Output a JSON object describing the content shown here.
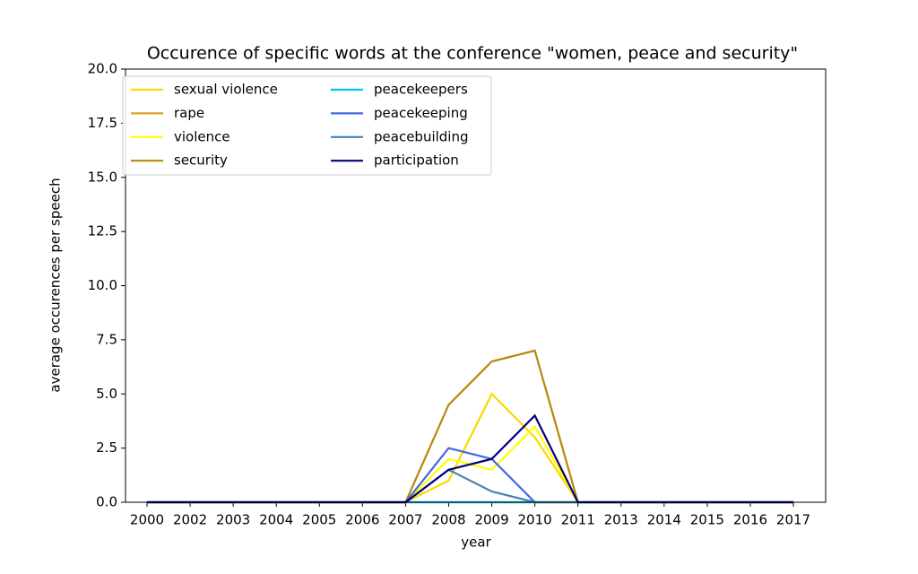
{
  "chart_data": {
    "type": "line",
    "title": "Occurence of specific words at the conference \"women, peace and security\"",
    "xlabel": "year",
    "ylabel": "average occurences per speech",
    "categories": [
      "2000",
      "2002",
      "2003",
      "2004",
      "2005",
      "2006",
      "2007",
      "2008",
      "2009",
      "2010",
      "2011",
      "2013",
      "2014",
      "2015",
      "2016",
      "2017"
    ],
    "ylim": [
      0,
      20
    ],
    "yticks": [
      {
        "value": 0,
        "label": "0.0"
      },
      2.5,
      {
        "value": 5,
        "label": "5.0"
      },
      7.5,
      {
        "value": 10,
        "label": "10.0"
      },
      12.5,
      {
        "value": 15,
        "label": "15.0"
      },
      17.5,
      {
        "value": 20,
        "label": "20.0"
      }
    ],
    "legend": "upper left",
    "series": [
      {
        "name": "sexual violence",
        "color": "#ffd700",
        "values": [
          0,
          0,
          0,
          0,
          0,
          0,
          0,
          1.0,
          5.0,
          3.0,
          0,
          0,
          0,
          0,
          0,
          0
        ]
      },
      {
        "name": "rape",
        "color": "#daa520",
        "values": [
          0,
          0,
          0,
          0,
          0,
          0,
          0,
          0,
          0,
          0,
          0,
          0,
          0,
          0,
          0,
          0
        ]
      },
      {
        "name": "violence",
        "color": "#ffff00",
        "values": [
          0,
          0,
          0,
          0,
          0,
          0,
          0,
          2.0,
          1.5,
          3.5,
          0,
          0,
          0,
          0,
          0,
          0
        ]
      },
      {
        "name": "security",
        "color": "#b8860b",
        "values": [
          0,
          0,
          0,
          0,
          0,
          0,
          0,
          4.5,
          6.5,
          7.0,
          0,
          0,
          0,
          0,
          0,
          0
        ]
      },
      {
        "name": "peacekeepers",
        "color": "#00bfff",
        "values": [
          0,
          0,
          0,
          0,
          0,
          0,
          0,
          0,
          0,
          0,
          0,
          0,
          0,
          0,
          0,
          0
        ]
      },
      {
        "name": "peacekeeping",
        "color": "#4169e1",
        "values": [
          0,
          0,
          0,
          0,
          0,
          0,
          0,
          2.5,
          2.0,
          0,
          0,
          0,
          0,
          0,
          0,
          0
        ]
      },
      {
        "name": "peacebuilding",
        "color": "#4682b4",
        "values": [
          0,
          0,
          0,
          0,
          0,
          0,
          0,
          1.5,
          0.5,
          0,
          0,
          0,
          0,
          0,
          0,
          0
        ]
      },
      {
        "name": "participation",
        "color": "#000080",
        "values": [
          0,
          0,
          0,
          0,
          0,
          0,
          0,
          1.5,
          2.0,
          4.0,
          0,
          0,
          0,
          0,
          0,
          0
        ]
      }
    ]
  }
}
